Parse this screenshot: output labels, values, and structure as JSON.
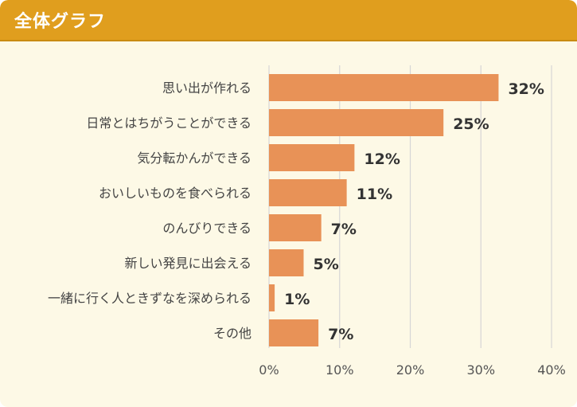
{
  "header": {
    "title": "全体グラフ"
  },
  "colors": {
    "bar": "#e89257",
    "grid": "#d6d6d6",
    "label": "#444444",
    "value": "#333333",
    "header": "#e09e1e",
    "panel": "#fdf9e6"
  },
  "chart_data": {
    "type": "bar",
    "orientation": "horizontal",
    "title": "全体グラフ",
    "categories": [
      "思い出が作れる",
      "日常とはちがうことができる",
      "気分転かんができる",
      "おいしいものを食べられる",
      "のんびりできる",
      "新しい発見に出会える",
      "一緒に行く人ときずなを深められる",
      "その他"
    ],
    "values": [
      32.5,
      24.7,
      12.1,
      11.0,
      7.4,
      4.9,
      0.8,
      7.0
    ],
    "value_labels": [
      "32%",
      "25%",
      "12%",
      "11%",
      "7%",
      "5%",
      "1%",
      "7%"
    ],
    "xlim": [
      0,
      40
    ],
    "xticks": [
      0,
      10,
      20,
      30,
      40
    ],
    "xtick_labels": [
      "0%",
      "10%",
      "20%",
      "30%",
      "40%"
    ],
    "grid": true,
    "xlabel": "",
    "ylabel": ""
  }
}
